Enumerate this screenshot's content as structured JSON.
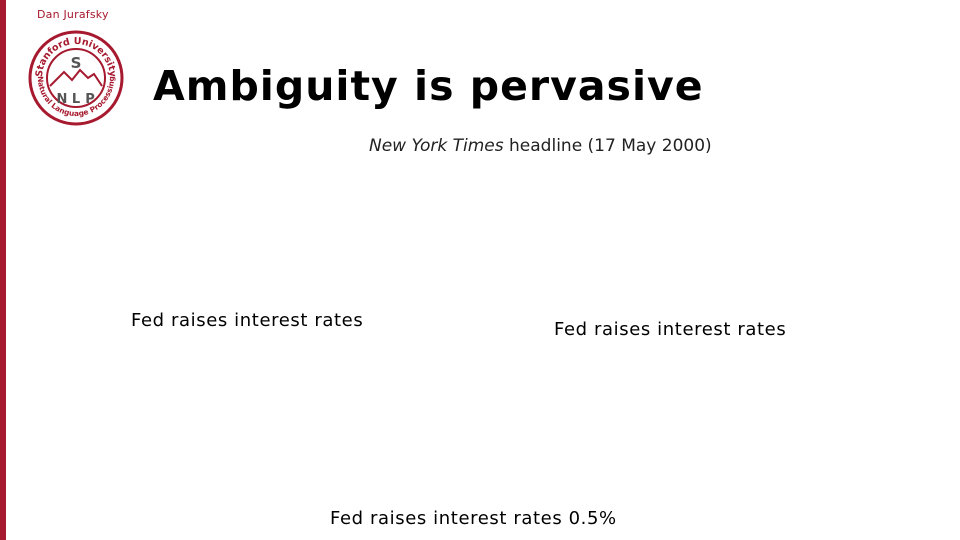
{
  "slide": {
    "author": "Dan Jurafsky",
    "title": "Ambiguity is pervasive",
    "subtitle_publication": "New York Times",
    "subtitle_rest": " headline (17 May 2000)",
    "headlines": [
      "Fed raises interest rates",
      "Fed raises interest rates",
      "Fed raises interest rates 0.5%"
    ]
  },
  "logo": {
    "top_text": "Stanford University",
    "bottom_text": "Natural Language Processing",
    "letter_s": "S",
    "letters_nlp": [
      "N",
      "L",
      "P"
    ]
  },
  "colors": {
    "accent": "#a6192e",
    "logo_gray": "#555555"
  }
}
